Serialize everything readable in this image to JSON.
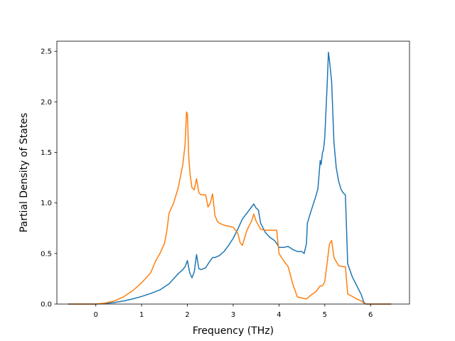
{
  "chart_data": {
    "type": "line",
    "title": "",
    "xlabel": "Frequency (THz)",
    "ylabel": "Partial Density of States",
    "xlim": [
      -0.85,
      6.85
    ],
    "ylim": [
      0.0,
      2.6
    ],
    "xticks": [
      0,
      1,
      2,
      3,
      4,
      5,
      6
    ],
    "yticks": [
      0.0,
      0.5,
      1.0,
      1.5,
      2.0,
      2.5
    ],
    "xtick_labels": [
      "0",
      "1",
      "2",
      "3",
      "4",
      "5",
      "6"
    ],
    "ytick_labels": [
      "0.0",
      "0.5",
      "1.0",
      "1.5",
      "2.0",
      "2.5"
    ],
    "grid": false,
    "legend": "none",
    "series": [
      {
        "color": "#1f77b4",
        "x": [
          -0.6,
          0.0,
          0.2,
          0.4,
          0.6,
          0.8,
          1.0,
          1.2,
          1.4,
          1.5,
          1.6,
          1.7,
          1.8,
          1.9,
          1.95,
          2.0,
          2.05,
          2.1,
          2.15,
          2.2,
          2.25,
          2.3,
          2.4,
          2.5,
          2.55,
          2.6,
          2.7,
          2.8,
          2.9,
          3.0,
          3.1,
          3.2,
          3.3,
          3.4,
          3.45,
          3.5,
          3.55,
          3.6,
          3.7,
          3.8,
          3.9,
          3.95,
          4.0,
          4.1,
          4.2,
          4.3,
          4.4,
          4.5,
          4.55,
          4.6,
          4.62,
          4.7,
          4.8,
          4.85,
          4.9,
          4.92,
          4.95,
          4.97,
          5.0,
          5.05,
          5.08,
          5.1,
          5.15,
          5.2,
          5.25,
          5.3,
          5.35,
          5.4,
          5.45,
          5.5,
          5.6,
          5.7,
          5.8,
          5.85,
          5.9,
          6.0,
          6.2,
          6.45
        ],
        "y": [
          0.0,
          0.0,
          0.005,
          0.015,
          0.03,
          0.05,
          0.075,
          0.105,
          0.14,
          0.17,
          0.2,
          0.25,
          0.3,
          0.34,
          0.37,
          0.43,
          0.31,
          0.26,
          0.32,
          0.49,
          0.35,
          0.34,
          0.36,
          0.43,
          0.46,
          0.46,
          0.48,
          0.52,
          0.58,
          0.65,
          0.74,
          0.84,
          0.9,
          0.96,
          0.99,
          0.95,
          0.93,
          0.8,
          0.71,
          0.66,
          0.63,
          0.6,
          0.56,
          0.56,
          0.57,
          0.54,
          0.52,
          0.52,
          0.5,
          0.6,
          0.8,
          0.92,
          1.06,
          1.14,
          1.42,
          1.38,
          1.5,
          1.52,
          1.65,
          2.15,
          2.49,
          2.42,
          2.2,
          1.6,
          1.35,
          1.22,
          1.14,
          1.1,
          1.08,
          0.4,
          0.27,
          0.18,
          0.09,
          0.02,
          0.0,
          0.0,
          0.0,
          0.0
        ]
      },
      {
        "color": "#ff7f0e",
        "x": [
          -0.6,
          0.0,
          0.2,
          0.4,
          0.6,
          0.8,
          1.0,
          1.2,
          1.3,
          1.4,
          1.5,
          1.55,
          1.6,
          1.7,
          1.8,
          1.9,
          1.95,
          1.98,
          2.0,
          2.03,
          2.06,
          2.1,
          2.15,
          2.2,
          2.25,
          2.3,
          2.4,
          2.45,
          2.5,
          2.55,
          2.6,
          2.65,
          2.7,
          2.8,
          3.0,
          3.1,
          3.15,
          3.2,
          3.3,
          3.4,
          3.45,
          3.5,
          3.6,
          3.7,
          3.8,
          3.9,
          3.95,
          4.0,
          4.1,
          4.2,
          4.3,
          4.4,
          4.6,
          4.7,
          4.8,
          4.9,
          4.95,
          5.0,
          5.05,
          5.1,
          5.15,
          5.2,
          5.3,
          5.4,
          5.45,
          5.5,
          5.7,
          5.8,
          5.85,
          5.9,
          6.0,
          6.45
        ],
        "y": [
          0.0,
          0.0,
          0.01,
          0.03,
          0.07,
          0.13,
          0.21,
          0.31,
          0.42,
          0.5,
          0.6,
          0.72,
          0.9,
          1.0,
          1.15,
          1.38,
          1.58,
          1.9,
          1.88,
          1.45,
          1.28,
          1.15,
          1.13,
          1.24,
          1.1,
          1.08,
          1.08,
          0.96,
          1.0,
          1.09,
          0.88,
          0.82,
          0.8,
          0.78,
          0.76,
          0.7,
          0.61,
          0.58,
          0.73,
          0.82,
          0.89,
          0.82,
          0.74,
          0.73,
          0.73,
          0.73,
          0.73,
          0.5,
          0.43,
          0.37,
          0.2,
          0.07,
          0.05,
          0.09,
          0.12,
          0.18,
          0.18,
          0.22,
          0.4,
          0.59,
          0.63,
          0.46,
          0.38,
          0.37,
          0.37,
          0.1,
          0.05,
          0.03,
          0.01,
          0.0,
          0.0,
          0.0
        ]
      }
    ]
  }
}
